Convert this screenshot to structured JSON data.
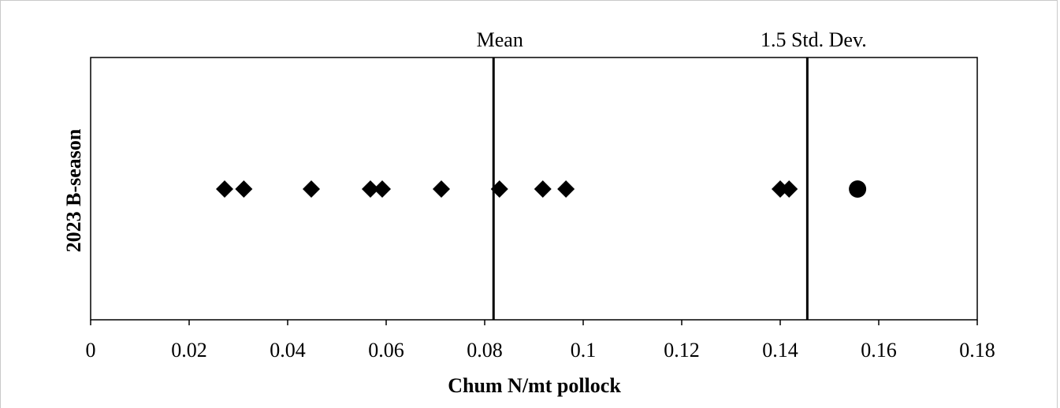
{
  "chart_data": {
    "type": "scatter",
    "title": "",
    "xlabel": "Chum  N/mt pollock",
    "ylabel": "2023 B-season",
    "xlim": [
      0,
      0.18
    ],
    "xticks": [
      0,
      0.02,
      0.04,
      0.06,
      0.08,
      0.1,
      0.12,
      0.14,
      0.16,
      0.18
    ],
    "xtick_labels": [
      "0",
      "0.02",
      "0.04",
      "0.06",
      "0.08",
      "0.1",
      "0.12",
      "0.14",
      "0.16",
      "0.18"
    ],
    "grid": false,
    "series": [
      {
        "marker": "diamond",
        "color": "#000000",
        "x": [
          0.0272,
          0.0311,
          0.0448,
          0.0568,
          0.0592,
          0.0712,
          0.083,
          0.0918,
          0.0965,
          0.14,
          0.1418
        ]
      },
      {
        "marker": "circle",
        "color": "#000000",
        "x": [
          0.1557
        ]
      }
    ],
    "reference_lines": [
      {
        "label": "Mean",
        "x": 0.0818
      },
      {
        "label": "1.5 Std. Dev.",
        "x": 0.1455
      }
    ]
  }
}
